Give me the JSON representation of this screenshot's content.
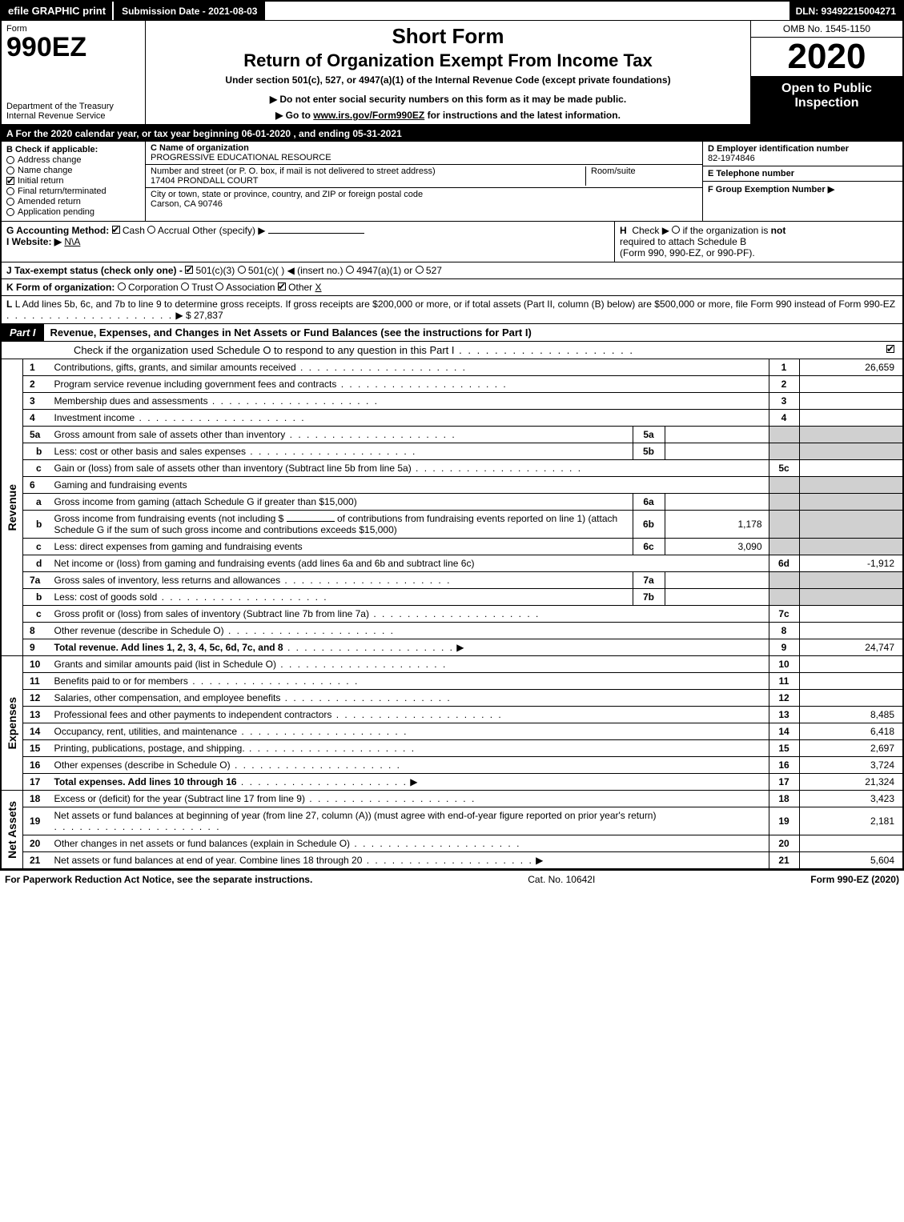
{
  "topbar": {
    "efile": "efile GRAPHIC print",
    "submission": "Submission Date - 2021-08-03",
    "dln": "DLN: 93492215004271"
  },
  "header": {
    "form_word": "Form",
    "form_number": "990EZ",
    "short_form": "Short Form",
    "return_title": "Return of Organization Exempt From Income Tax",
    "subtitle": "Under section 501(c), 527, or 4947(a)(1) of the Internal Revenue Code (except private foundations)",
    "notice": "▶ Do not enter social security numbers on this form as it may be made public.",
    "goto_prefix": "▶ Go to ",
    "goto_link": "www.irs.gov/Form990EZ",
    "goto_suffix": " for instructions and the latest information.",
    "dept": "Department of the Treasury\nInternal Revenue Service",
    "omb": "OMB No. 1545-1150",
    "year": "2020",
    "inspection": "Open to Public Inspection"
  },
  "taxyear": "A For the 2020 calendar year, or tax year beginning 06-01-2020 , and ending 05-31-2021",
  "sectionB": {
    "title": "B  Check if applicable:",
    "items": [
      {
        "label": "Address change",
        "checked": false,
        "circle": true
      },
      {
        "label": "Name change",
        "checked": false,
        "circle": true
      },
      {
        "label": "Initial return",
        "checked": true,
        "circle": false
      },
      {
        "label": "Final return/terminated",
        "checked": false,
        "circle": true
      },
      {
        "label": "Amended return",
        "checked": false,
        "circle": true
      },
      {
        "label": "Application pending",
        "checked": false,
        "circle": true
      }
    ]
  },
  "sectionC": {
    "name_label": "C Name of organization",
    "name": "PROGRESSIVE EDUCATIONAL RESOURCE",
    "addr_label": "Number and street (or P. O. box, if mail is not delivered to street address)",
    "addr": "17404 PRONDALL COURT",
    "room_label": "Room/suite",
    "city_label": "City or town, state or province, country, and ZIP or foreign postal code",
    "city": "Carson, CA  90746"
  },
  "sectionD": {
    "label": "D Employer identification number",
    "value": "82-1974846"
  },
  "sectionE": {
    "label": "E Telephone number",
    "value": ""
  },
  "sectionF": {
    "label": "F Group Exemption Number  ▶",
    "value": ""
  },
  "sectionG": {
    "label": "G Accounting Method:",
    "cash": "Cash",
    "accrual": "Accrual",
    "other": "Other (specify) ▶"
  },
  "sectionH": {
    "line1": "H  Check ▶    if the organization is not",
    "line2": "required to attach Schedule B",
    "line3": "(Form 990, 990-EZ, or 990-PF)."
  },
  "sectionI": {
    "label": "I Website: ▶",
    "value": "N\\A"
  },
  "sectionJ": {
    "label": "J Tax-exempt status (check only one) -",
    "opt1": "501(c)(3)",
    "opt2": "501(c)(  ) ◀ (insert no.)",
    "opt3": "4947(a)(1) or",
    "opt4": "527"
  },
  "sectionK": {
    "label": "K Form of organization:",
    "corp": "Corporation",
    "trust": "Trust",
    "assoc": "Association",
    "other": "Other",
    "other_val": "X"
  },
  "sectionL": {
    "text": "L Add lines 5b, 6c, and 7b to line 9 to determine gross receipts. If gross receipts are $200,000 or more, or if total assets (Part II, column (B) below) are $500,000 or more, file Form 990 instead of Form 990-EZ",
    "amount": "▶ $ 27,837"
  },
  "part1": {
    "tab": "Part I",
    "title": "Revenue, Expenses, and Changes in Net Assets or Fund Balances (see the instructions for Part I)",
    "sub": "Check if the organization used Schedule O to respond to any question in this Part I",
    "sub_checked": true
  },
  "vlabels": {
    "revenue": "Revenue",
    "expenses": "Expenses",
    "netassets": "Net Assets"
  },
  "lines": {
    "l1": {
      "num": "1",
      "desc": "Contributions, gifts, grants, and similar amounts received",
      "rnum": "1",
      "rval": "26,659"
    },
    "l2": {
      "num": "2",
      "desc": "Program service revenue including government fees and contracts",
      "rnum": "2",
      "rval": ""
    },
    "l3": {
      "num": "3",
      "desc": "Membership dues and assessments",
      "rnum": "3",
      "rval": ""
    },
    "l4": {
      "num": "4",
      "desc": "Investment income",
      "rnum": "4",
      "rval": ""
    },
    "l5a": {
      "num": "5a",
      "desc": "Gross amount from sale of assets other than inventory",
      "mid": "5a",
      "midval": ""
    },
    "l5b": {
      "num": "b",
      "desc": "Less: cost or other basis and sales expenses",
      "mid": "5b",
      "midval": ""
    },
    "l5c": {
      "num": "c",
      "desc": "Gain or (loss) from sale of assets other than inventory (Subtract line 5b from line 5a)",
      "rnum": "5c",
      "rval": ""
    },
    "l6": {
      "num": "6",
      "desc": "Gaming and fundraising events"
    },
    "l6a": {
      "num": "a",
      "desc": "Gross income from gaming (attach Schedule G if greater than $15,000)",
      "mid": "6a",
      "midval": ""
    },
    "l6b": {
      "num": "b",
      "desc1": "Gross income from fundraising events (not including $",
      "desc2": "of contributions from fundraising events reported on line 1) (attach Schedule G if the sum of such gross income and contributions exceeds $15,000)",
      "mid": "6b",
      "midval": "1,178"
    },
    "l6c": {
      "num": "c",
      "desc": "Less: direct expenses from gaming and fundraising events",
      "mid": "6c",
      "midval": "3,090"
    },
    "l6d": {
      "num": "d",
      "desc": "Net income or (loss) from gaming and fundraising events (add lines 6a and 6b and subtract line 6c)",
      "rnum": "6d",
      "rval": "-1,912"
    },
    "l7a": {
      "num": "7a",
      "desc": "Gross sales of inventory, less returns and allowances",
      "mid": "7a",
      "midval": ""
    },
    "l7b": {
      "num": "b",
      "desc": "Less: cost of goods sold",
      "mid": "7b",
      "midval": ""
    },
    "l7c": {
      "num": "c",
      "desc": "Gross profit or (loss) from sales of inventory (Subtract line 7b from line 7a)",
      "rnum": "7c",
      "rval": ""
    },
    "l8": {
      "num": "8",
      "desc": "Other revenue (describe in Schedule O)",
      "rnum": "8",
      "rval": ""
    },
    "l9": {
      "num": "9",
      "desc": "Total revenue. Add lines 1, 2, 3, 4, 5c, 6d, 7c, and 8",
      "rnum": "9",
      "rval": "24,747",
      "bold": true,
      "arrow": true
    },
    "l10": {
      "num": "10",
      "desc": "Grants and similar amounts paid (list in Schedule O)",
      "rnum": "10",
      "rval": ""
    },
    "l11": {
      "num": "11",
      "desc": "Benefits paid to or for members",
      "rnum": "11",
      "rval": ""
    },
    "l12": {
      "num": "12",
      "desc": "Salaries, other compensation, and employee benefits",
      "rnum": "12",
      "rval": ""
    },
    "l13": {
      "num": "13",
      "desc": "Professional fees and other payments to independent contractors",
      "rnum": "13",
      "rval": "8,485"
    },
    "l14": {
      "num": "14",
      "desc": "Occupancy, rent, utilities, and maintenance",
      "rnum": "14",
      "rval": "6,418"
    },
    "l15": {
      "num": "15",
      "desc": "Printing, publications, postage, and shipping.",
      "rnum": "15",
      "rval": "2,697"
    },
    "l16": {
      "num": "16",
      "desc": "Other expenses (describe in Schedule O)",
      "rnum": "16",
      "rval": "3,724"
    },
    "l17": {
      "num": "17",
      "desc": "Total expenses. Add lines 10 through 16",
      "rnum": "17",
      "rval": "21,324",
      "bold": true,
      "arrow": true
    },
    "l18": {
      "num": "18",
      "desc": "Excess or (deficit) for the year (Subtract line 17 from line 9)",
      "rnum": "18",
      "rval": "3,423"
    },
    "l19": {
      "num": "19",
      "desc": "Net assets or fund balances at beginning of year (from line 27, column (A)) (must agree with end-of-year figure reported on prior year's return)",
      "rnum": "19",
      "rval": "2,181"
    },
    "l20": {
      "num": "20",
      "desc": "Other changes in net assets or fund balances (explain in Schedule O)",
      "rnum": "20",
      "rval": ""
    },
    "l21": {
      "num": "21",
      "desc": "Net assets or fund balances at end of year. Combine lines 18 through 20",
      "rnum": "21",
      "rval": "5,604"
    }
  },
  "footer": {
    "left": "For Paperwork Reduction Act Notice, see the separate instructions.",
    "center": "Cat. No. 10642I",
    "right": "Form 990-EZ (2020)"
  },
  "colors": {
    "black": "#000000",
    "white": "#ffffff",
    "shade": "#d0d0d0"
  }
}
